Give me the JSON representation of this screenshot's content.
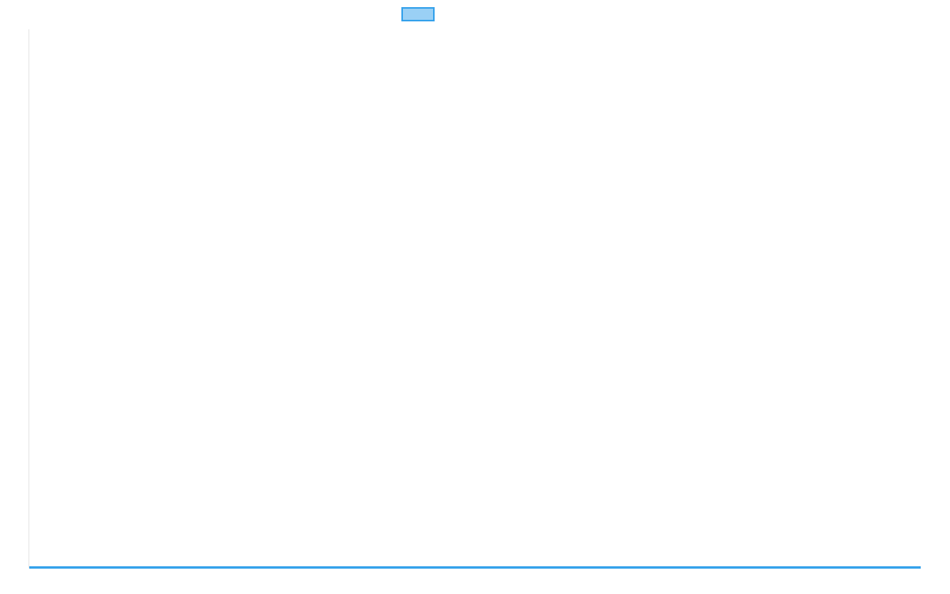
{
  "chart_data": {
    "type": "line",
    "title": "",
    "xlabel": "",
    "ylabel": "",
    "categories": [],
    "series": [
      {
        "values": [],
        "color": "#36a2eb",
        "fill_color": "#9ad0f5",
        "at_axis_minimum": true
      }
    ],
    "legend": {
      "placement": "top",
      "entries": [
        {
          "label": "",
          "color": "#36a2eb"
        }
      ]
    },
    "grid": false
  }
}
